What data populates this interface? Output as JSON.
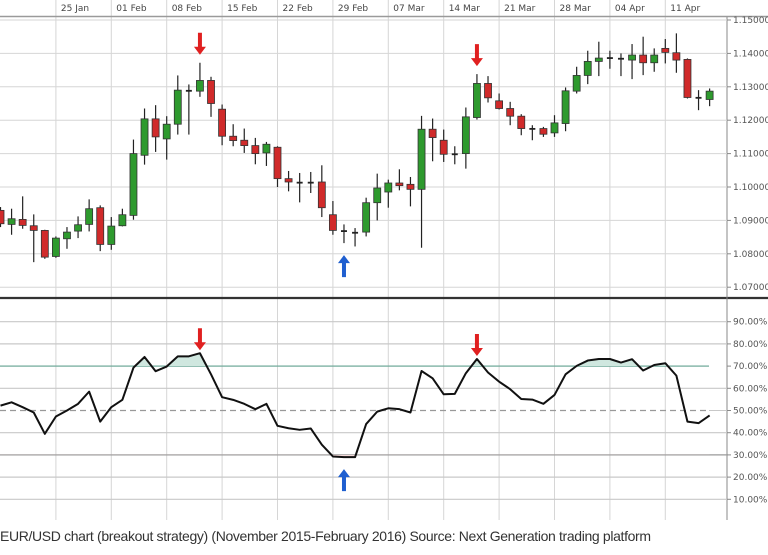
{
  "caption": "EUR/USD chart (breakout strategy) (November 2015-February 2016) Source: Next Generation trading platform",
  "colors": {
    "up": "#2e9a2e",
    "down": "#d02a2a",
    "signal_down": "#e02020",
    "signal_up": "#1f5fd0",
    "overbought_fill": "#cfe7df",
    "oversold_fill": "#f3d9d9",
    "line": "#111111"
  },
  "chart_data": [
    {
      "type": "candlestick",
      "x_tick_labels": [
        "25 Jan",
        "01 Feb",
        "08 Feb",
        "15 Feb",
        "22 Feb",
        "29 Feb",
        "07 Mar",
        "14 Mar",
        "21 Mar",
        "28 Mar",
        "04 Apr",
        "11 Apr"
      ],
      "y_tick_labels": [
        "1.15000",
        "1.14000",
        "1.13000",
        "1.12000",
        "1.11000",
        "1.10000",
        "1.09000",
        "1.08000",
        "1.07000"
      ],
      "ylim": [
        1.07,
        1.15
      ],
      "grid": true,
      "columns": [
        "date",
        "open",
        "high",
        "low",
        "close"
      ],
      "candles": [
        [
          "2016-01-18",
          1.093,
          1.094,
          1.088,
          1.089
        ],
        [
          "2016-01-19",
          1.0888,
          1.0935,
          1.0857,
          1.0905
        ],
        [
          "2016-01-20",
          1.0903,
          1.0972,
          1.0875,
          1.0885
        ],
        [
          "2016-01-21",
          1.0884,
          1.0918,
          1.0775,
          1.087
        ],
        [
          "2016-01-22",
          1.087,
          1.0872,
          1.0785,
          1.079
        ],
        [
          "2016-01-25",
          1.0792,
          1.0852,
          1.0788,
          1.0847
        ],
        [
          "2016-01-26",
          1.0845,
          1.088,
          1.0815,
          1.0865
        ],
        [
          "2016-01-27",
          1.0868,
          1.0912,
          1.0847,
          1.0887
        ],
        [
          "2016-01-28",
          1.0888,
          1.0963,
          1.0867,
          1.0935
        ],
        [
          "2016-01-29",
          1.0938,
          1.0945,
          1.0808,
          1.0828
        ],
        [
          "2016-02-01",
          1.0828,
          1.091,
          1.0812,
          1.0883
        ],
        [
          "2016-02-02",
          1.0884,
          1.0935,
          1.0882,
          1.0917
        ],
        [
          "2016-02-03",
          1.0915,
          1.1142,
          1.0902,
          1.11
        ],
        [
          "2016-02-04",
          1.1095,
          1.1235,
          1.1067,
          1.1204
        ],
        [
          "2016-02-05",
          1.1204,
          1.1245,
          1.1105,
          1.115
        ],
        [
          "2016-02-08",
          1.1144,
          1.1212,
          1.1082,
          1.1188
        ],
        [
          "2016-02-09",
          1.1188,
          1.1334,
          1.1157,
          1.129
        ],
        [
          "2016-02-10",
          1.1288,
          1.1307,
          1.1157,
          1.1288
        ],
        [
          "2016-02-11",
          1.1287,
          1.1372,
          1.127,
          1.1319
        ],
        [
          "2016-02-12",
          1.1319,
          1.133,
          1.121,
          1.125
        ],
        [
          "2016-02-15",
          1.1233,
          1.1247,
          1.1125,
          1.1152
        ],
        [
          "2016-02-16",
          1.1152,
          1.1188,
          1.1122,
          1.1139
        ],
        [
          "2016-02-17",
          1.114,
          1.1175,
          1.1102,
          1.1124
        ],
        [
          "2016-02-18",
          1.1124,
          1.1147,
          1.1068,
          1.11
        ],
        [
          "2016-02-19",
          1.1102,
          1.1135,
          1.1063,
          1.1128
        ],
        [
          "2016-02-22",
          1.1119,
          1.1122,
          1.1,
          1.1025
        ],
        [
          "2016-02-23",
          1.1025,
          1.1048,
          1.0987,
          1.1015
        ],
        [
          "2016-02-24",
          1.1013,
          1.1042,
          1.0954,
          1.1013
        ],
        [
          "2016-02-25",
          1.1013,
          1.1045,
          1.0982,
          1.1013
        ],
        [
          "2016-02-26",
          1.1015,
          1.1065,
          1.091,
          1.0938
        ],
        [
          "2016-02-29",
          1.0917,
          1.0958,
          1.0857,
          1.087
        ],
        [
          "2016-03-01",
          1.0868,
          1.0888,
          1.0832,
          1.0868
        ],
        [
          "2016-03-02",
          1.0863,
          1.0877,
          1.0822,
          1.0863
        ],
        [
          "2016-03-03",
          1.0865,
          1.0968,
          1.0852,
          1.0953
        ],
        [
          "2016-03-04",
          1.0953,
          1.104,
          1.09,
          1.0997
        ],
        [
          "2016-03-07",
          1.0985,
          1.1022,
          1.0938,
          1.1012
        ],
        [
          "2016-03-08",
          1.1012,
          1.1053,
          1.099,
          1.1004
        ],
        [
          "2016-03-09",
          1.1008,
          1.103,
          1.0942,
          1.0993
        ],
        [
          "2016-03-10",
          1.0993,
          1.1213,
          1.0818,
          1.1173
        ],
        [
          "2016-03-11",
          1.1173,
          1.1205,
          1.1077,
          1.1148
        ],
        [
          "2016-03-14",
          1.114,
          1.1172,
          1.1075,
          1.1098
        ],
        [
          "2016-03-15",
          1.1098,
          1.1122,
          1.1068,
          1.1098
        ],
        [
          "2016-03-16",
          1.11,
          1.1238,
          1.1055,
          1.121
        ],
        [
          "2016-03-17",
          1.1208,
          1.1338,
          1.1202,
          1.131
        ],
        [
          "2016-03-18",
          1.131,
          1.1332,
          1.1253,
          1.1267
        ],
        [
          "2016-03-21",
          1.1258,
          1.128,
          1.1232,
          1.1235
        ],
        [
          "2016-03-22",
          1.1235,
          1.1255,
          1.1185,
          1.1212
        ],
        [
          "2016-03-23",
          1.1212,
          1.1218,
          1.1155,
          1.1175
        ],
        [
          "2016-03-24",
          1.1174,
          1.1185,
          1.114,
          1.1174
        ],
        [
          "2016-03-25",
          1.1175,
          1.118,
          1.115,
          1.1158
        ],
        [
          "2016-03-28",
          1.1162,
          1.1215,
          1.115,
          1.1192
        ],
        [
          "2016-03-29",
          1.119,
          1.1298,
          1.1167,
          1.1288
        ],
        [
          "2016-03-30",
          1.1287,
          1.136,
          1.128,
          1.1334
        ],
        [
          "2016-03-31",
          1.1334,
          1.1408,
          1.1308,
          1.1376
        ],
        [
          "2016-04-01",
          1.1376,
          1.1435,
          1.1332,
          1.1386
        ],
        [
          "2016-04-04",
          1.1386,
          1.1408,
          1.1354,
          1.1386
        ],
        [
          "2016-04-05",
          1.1384,
          1.14,
          1.1332,
          1.1384
        ],
        [
          "2016-04-06",
          1.138,
          1.1428,
          1.1323,
          1.1395
        ],
        [
          "2016-04-07",
          1.1395,
          1.145,
          1.1335,
          1.1372
        ],
        [
          "2016-04-08",
          1.1372,
          1.1415,
          1.1345,
          1.1395
        ],
        [
          "2016-04-11",
          1.1415,
          1.1443,
          1.137,
          1.1403
        ],
        [
          "2016-04-12",
          1.1402,
          1.146,
          1.1342,
          1.138
        ],
        [
          "2016-04-13",
          1.1382,
          1.1385,
          1.1265,
          1.1268
        ],
        [
          "2016-04-14",
          1.1267,
          1.129,
          1.123,
          1.1267
        ],
        [
          "2016-04-15",
          1.1262,
          1.1295,
          1.1242,
          1.1287
        ]
      ],
      "signals": [
        {
          "date": "2016-02-11",
          "direction": "down"
        },
        {
          "date": "2016-03-17",
          "direction": "down"
        },
        {
          "date": "2016-03-01",
          "direction": "up"
        }
      ]
    },
    {
      "type": "line",
      "y_tick_labels": [
        "90.00%",
        "80.00%",
        "70.00%",
        "60.00%",
        "50.00%",
        "40.00%",
        "30.00%",
        "20.00%",
        "10.00%"
      ],
      "ylim": [
        0,
        100
      ],
      "levels": {
        "overbought": 70,
        "midline": 50,
        "oversold": 30
      },
      "grid": true,
      "values": [
        52.2,
        53.7,
        51.5,
        49.1,
        39.5,
        47.3,
        50.0,
        53.0,
        58.5,
        45.0,
        51.5,
        54.8,
        69.3,
        74.1,
        67.7,
        69.8,
        74.4,
        74.4,
        75.8,
        66.3,
        56.0,
        54.8,
        53.0,
        50.6,
        53.0,
        43.1,
        42.0,
        41.3,
        41.9,
        34.6,
        29.3,
        29.0,
        29.0,
        43.9,
        49.5,
        51.0,
        50.6,
        49.1,
        67.8,
        64.5,
        57.3,
        57.5,
        66.8,
        73.2,
        67.1,
        63.0,
        59.6,
        55.2,
        54.9,
        53.0,
        57.0,
        66.3,
        70.1,
        72.5,
        73.2,
        73.2,
        71.6,
        73.1,
        68.0,
        70.5,
        71.3,
        65.7,
        45.0,
        44.3,
        47.8
      ],
      "signals": [
        {
          "date": "2016-02-11",
          "direction": "down"
        },
        {
          "date": "2016-03-17",
          "direction": "down"
        },
        {
          "date": "2016-03-01",
          "direction": "up"
        }
      ]
    }
  ]
}
